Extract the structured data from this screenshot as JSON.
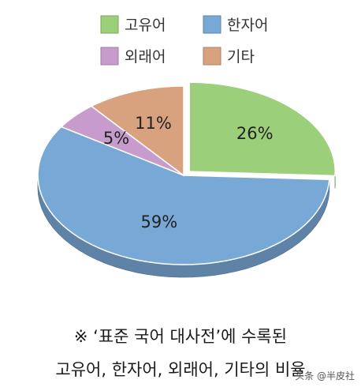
{
  "chart_data": {
    "type": "pie",
    "categories": [
      "고유어",
      "한자어",
      "외래어",
      "기타"
    ],
    "values": [
      26,
      59,
      5,
      11
    ],
    "labels": [
      "26%",
      "59%",
      "5%",
      "11%"
    ],
    "colors": [
      "#9ccf7a",
      "#78a8d6",
      "#c79ccc",
      "#d9a27f"
    ],
    "exploded": [
      "고유어"
    ],
    "legend_position": "top",
    "style": "3d"
  },
  "caption": {
    "line1": "※ ‘표준 국어 대사전’에 수록된",
    "line2": "고유어, 한자어, 외래어, 기타의 비율"
  },
  "watermark": "头条 @半皮社"
}
